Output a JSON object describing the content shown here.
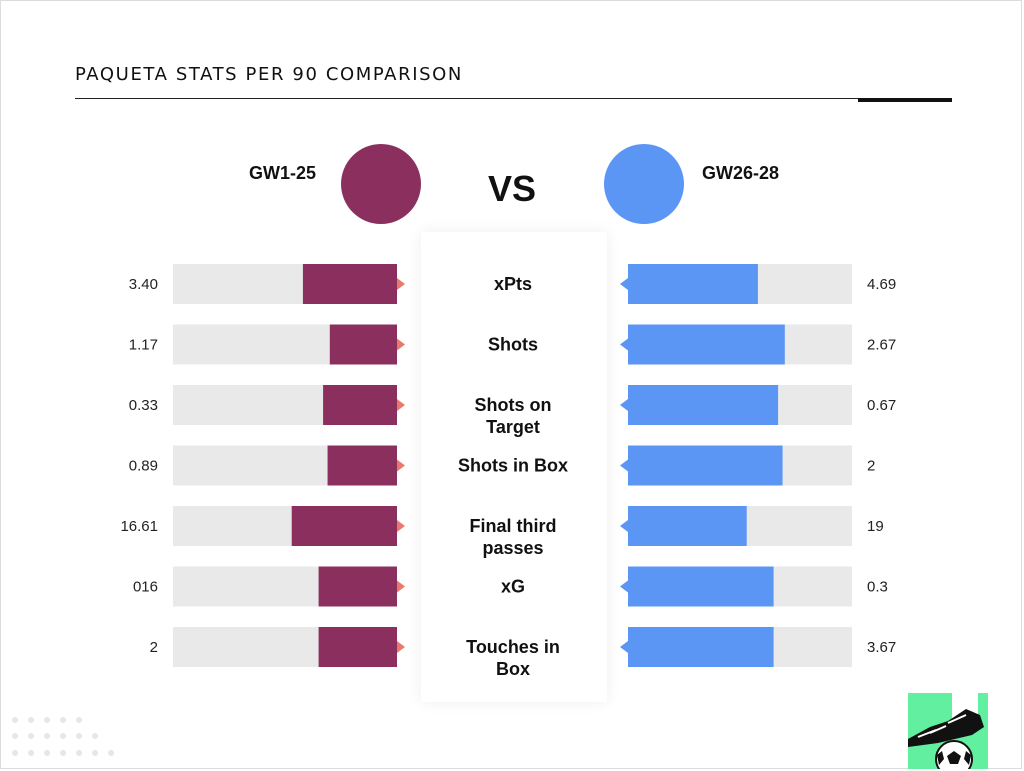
{
  "title": "PAQUETA STATS PER 90 COMPARISON",
  "vs_label": "VS",
  "chart_data": {
    "type": "bar",
    "title": "PAQUETA STATS PER 90 COMPARISON",
    "layout": "butterfly",
    "colors": {
      "left_bar": "#8B2F5F",
      "right_bar": "#5C96F5",
      "track": "#E9E9E9",
      "left_arrow": "#E87A6C",
      "right_arrow": "#5C96F5"
    },
    "categories": [
      "xPts",
      "Shots",
      "Shots on Target",
      "Shots in Box",
      "Final third passes",
      "xG",
      "Touches in Box"
    ],
    "category_lines": [
      [
        "xPts"
      ],
      [
        "Shots"
      ],
      [
        "Shots on",
        "Target"
      ],
      [
        "Shots in Box"
      ],
      [
        "Final third",
        "passes"
      ],
      [
        "xG"
      ],
      [
        "Touches in",
        "Box"
      ]
    ],
    "series": [
      {
        "name": "GW1-25",
        "labels": [
          "3.40",
          "1.17",
          "0.33",
          "0.89",
          "16.61",
          "016",
          "2"
        ],
        "bar_fraction": [
          0.42,
          0.3,
          0.33,
          0.31,
          0.47,
          0.35,
          0.35
        ]
      },
      {
        "name": "GW26-28",
        "labels": [
          "4.69",
          "2.67",
          "0.67",
          "2",
          "19",
          "0.3",
          "3.67"
        ],
        "bar_fraction": [
          0.58,
          0.7,
          0.67,
          0.69,
          0.53,
          0.65,
          0.65
        ]
      }
    ]
  }
}
